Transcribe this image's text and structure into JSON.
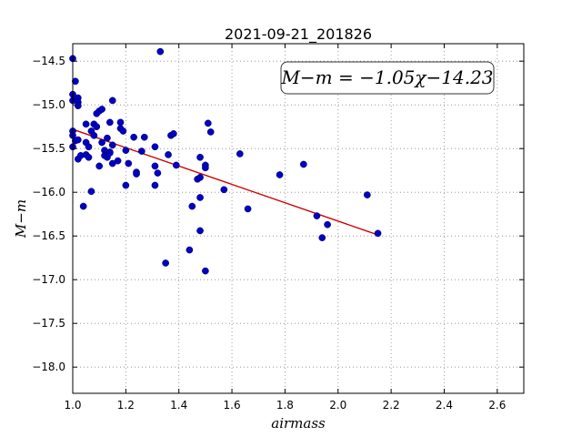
{
  "chart_data": {
    "type": "scatter",
    "title": "2021-09-21_201826",
    "xlabel": "airmass",
    "ylabel": "M−m",
    "xlim": [
      1.0,
      2.7
    ],
    "ylim": [
      -18.3,
      -14.3
    ],
    "y_inverted": true,
    "grid": true,
    "x_ticks": [
      1.0,
      1.2,
      1.4,
      1.6,
      1.8,
      2.0,
      2.2,
      2.4,
      2.6
    ],
    "x_tick_labels": [
      "1.0",
      "1.2",
      "1.4",
      "1.6",
      "1.8",
      "2.0",
      "2.2",
      "2.4",
      "2.6"
    ],
    "y_ticks": [
      -14.5,
      -15.0,
      -15.5,
      -16.0,
      -16.5,
      -17.0,
      -17.5,
      -18.0
    ],
    "y_tick_labels": [
      "−14.5",
      "−15.0",
      "−15.5",
      "−16.0",
      "−16.5",
      "−17.0",
      "−17.5",
      "−18.0"
    ],
    "annotation": "M−m = −1.05χ−14.23",
    "annotation_position": "top-right",
    "colors": {
      "points": "#0000bf",
      "fit": "#cc0000",
      "grid": "#888888"
    },
    "fit": {
      "slope": -1.05,
      "intercept": -14.23,
      "x_range": [
        1.0,
        2.15
      ]
    },
    "points": [
      {
        "x": 1.0,
        "y": -14.47
      },
      {
        "x": 1.01,
        "y": -14.73
      },
      {
        "x": 1.0,
        "y": -14.88
      },
      {
        "x": 1.0,
        "y": -14.95
      },
      {
        "x": 1.02,
        "y": -14.92
      },
      {
        "x": 1.02,
        "y": -14.97
      },
      {
        "x": 1.02,
        "y": -15.01
      },
      {
        "x": 1.0,
        "y": -15.3
      },
      {
        "x": 1.0,
        "y": -15.35
      },
      {
        "x": 1.01,
        "y": -15.41
      },
      {
        "x": 1.0,
        "y": -15.48
      },
      {
        "x": 1.02,
        "y": -15.4
      },
      {
        "x": 1.02,
        "y": -15.62
      },
      {
        "x": 1.03,
        "y": -15.58
      },
      {
        "x": 1.05,
        "y": -15.22
      },
      {
        "x": 1.05,
        "y": -15.43
      },
      {
        "x": 1.05,
        "y": -15.57
      },
      {
        "x": 1.06,
        "y": -15.48
      },
      {
        "x": 1.06,
        "y": -15.6
      },
      {
        "x": 1.04,
        "y": -16.16
      },
      {
        "x": 1.07,
        "y": -15.99
      },
      {
        "x": 1.07,
        "y": -15.3
      },
      {
        "x": 1.08,
        "y": -15.35
      },
      {
        "x": 1.08,
        "y": -15.22
      },
      {
        "x": 1.09,
        "y": -15.25
      },
      {
        "x": 1.09,
        "y": -15.1
      },
      {
        "x": 1.1,
        "y": -15.07
      },
      {
        "x": 1.11,
        "y": -15.05
      },
      {
        "x": 1.1,
        "y": -15.7
      },
      {
        "x": 1.11,
        "y": -15.43
      },
      {
        "x": 1.12,
        "y": -15.52
      },
      {
        "x": 1.12,
        "y": -15.58
      },
      {
        "x": 1.13,
        "y": -15.38
      },
      {
        "x": 1.13,
        "y": -15.6
      },
      {
        "x": 1.14,
        "y": -15.54
      },
      {
        "x": 1.14,
        "y": -15.2
      },
      {
        "x": 1.14,
        "y": -15.55
      },
      {
        "x": 1.15,
        "y": -14.95
      },
      {
        "x": 1.15,
        "y": -15.46
      },
      {
        "x": 1.15,
        "y": -15.67
      },
      {
        "x": 1.17,
        "y": -15.64
      },
      {
        "x": 1.18,
        "y": -15.2
      },
      {
        "x": 1.18,
        "y": -15.27
      },
      {
        "x": 1.19,
        "y": -15.3
      },
      {
        "x": 1.2,
        "y": -15.92
      },
      {
        "x": 1.21,
        "y": -15.67
      },
      {
        "x": 1.2,
        "y": -15.52
      },
      {
        "x": 1.23,
        "y": -15.37
      },
      {
        "x": 1.24,
        "y": -15.77
      },
      {
        "x": 1.24,
        "y": -15.79
      },
      {
        "x": 1.26,
        "y": -15.53
      },
      {
        "x": 1.27,
        "y": -15.37
      },
      {
        "x": 1.31,
        "y": -15.48
      },
      {
        "x": 1.31,
        "y": -15.7
      },
      {
        "x": 1.31,
        "y": -15.92
      },
      {
        "x": 1.32,
        "y": -15.78
      },
      {
        "x": 1.33,
        "y": -14.39
      },
      {
        "x": 1.35,
        "y": -16.81
      },
      {
        "x": 1.36,
        "y": -15.57
      },
      {
        "x": 1.37,
        "y": -15.35
      },
      {
        "x": 1.38,
        "y": -15.33
      },
      {
        "x": 1.39,
        "y": -15.69
      },
      {
        "x": 1.44,
        "y": -16.66
      },
      {
        "x": 1.45,
        "y": -16.16
      },
      {
        "x": 1.47,
        "y": -15.85
      },
      {
        "x": 1.48,
        "y": -15.6
      },
      {
        "x": 1.48,
        "y": -15.83
      },
      {
        "x": 1.48,
        "y": -16.06
      },
      {
        "x": 1.48,
        "y": -16.44
      },
      {
        "x": 1.5,
        "y": -15.69
      },
      {
        "x": 1.5,
        "y": -15.72
      },
      {
        "x": 1.5,
        "y": -16.9
      },
      {
        "x": 1.51,
        "y": -15.21
      },
      {
        "x": 1.52,
        "y": -15.31
      },
      {
        "x": 1.57,
        "y": -15.97
      },
      {
        "x": 1.63,
        "y": -15.56
      },
      {
        "x": 1.66,
        "y": -16.19
      },
      {
        "x": 1.78,
        "y": -15.8
      },
      {
        "x": 1.87,
        "y": -15.68
      },
      {
        "x": 1.92,
        "y": -16.27
      },
      {
        "x": 1.94,
        "y": -16.52
      },
      {
        "x": 1.96,
        "y": -16.37
      },
      {
        "x": 2.11,
        "y": -16.03
      },
      {
        "x": 2.15,
        "y": -16.47
      }
    ]
  }
}
